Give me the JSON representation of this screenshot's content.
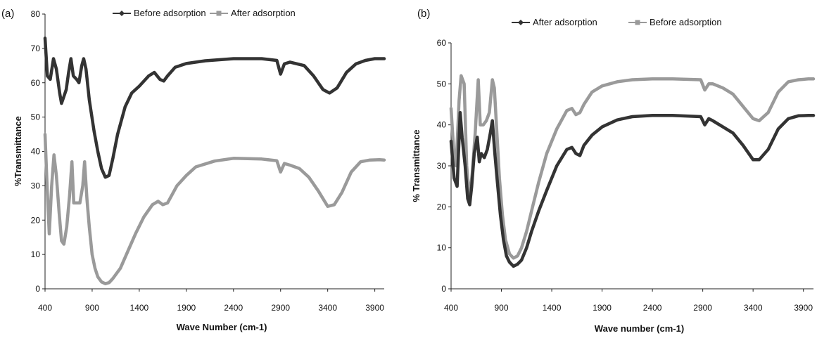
{
  "chart_data": [
    {
      "type": "line",
      "panel_label": "(a)",
      "xlabel": "Wave Number (cm-1)",
      "ylabel": "%Transmittance",
      "xlim": [
        400,
        4000
      ],
      "ylim": [
        0,
        80
      ],
      "x_ticks": [
        400,
        900,
        1400,
        1900,
        2400,
        2900,
        3400,
        3900
      ],
      "y_ticks": [
        0,
        10,
        20,
        30,
        40,
        50,
        60,
        70,
        80
      ],
      "legend_position": "top-center",
      "grid": false,
      "series": [
        {
          "name": "Before adsorption",
          "color": "#333333",
          "marker": "diamond",
          "points": [
            [
              400,
              73
            ],
            [
              425,
              62
            ],
            [
              455,
              61
            ],
            [
              490,
              67
            ],
            [
              520,
              64
            ],
            [
              555,
              57
            ],
            [
              575,
              54
            ],
            [
              600,
              56
            ],
            [
              625,
              58
            ],
            [
              650,
              63
            ],
            [
              675,
              67
            ],
            [
              700,
              62
            ],
            [
              735,
              61
            ],
            [
              760,
              60
            ],
            [
              790,
              65
            ],
            [
              810,
              67
            ],
            [
              835,
              64
            ],
            [
              870,
              55
            ],
            [
              920,
              46
            ],
            [
              960,
              40
            ],
            [
              1000,
              35
            ],
            [
              1040,
              32.5
            ],
            [
              1080,
              33
            ],
            [
              1120,
              38
            ],
            [
              1170,
              45
            ],
            [
              1250,
              53
            ],
            [
              1320,
              57
            ],
            [
              1400,
              59
            ],
            [
              1500,
              62
            ],
            [
              1560,
              63
            ],
            [
              1620,
              61
            ],
            [
              1660,
              60.5
            ],
            [
              1700,
              62
            ],
            [
              1780,
              64.5
            ],
            [
              1900,
              65.6
            ],
            [
              2100,
              66.4
            ],
            [
              2400,
              67
            ],
            [
              2700,
              67
            ],
            [
              2860,
              66.5
            ],
            [
              2900,
              62.5
            ],
            [
              2940,
              65.5
            ],
            [
              3000,
              66
            ],
            [
              3150,
              65
            ],
            [
              3250,
              62
            ],
            [
              3350,
              58
            ],
            [
              3420,
              57
            ],
            [
              3500,
              58.5
            ],
            [
              3600,
              63
            ],
            [
              3700,
              65.5
            ],
            [
              3800,
              66.5
            ],
            [
              3900,
              67
            ],
            [
              4000,
              67
            ]
          ]
        },
        {
          "name": "After adsorption",
          "color": "#9a9a9a",
          "marker": "square",
          "points": [
            [
              400,
              45
            ],
            [
              425,
              28
            ],
            [
              445,
              16
            ],
            [
              470,
              30
            ],
            [
              495,
              39
            ],
            [
              520,
              33
            ],
            [
              550,
              22
            ],
            [
              575,
              14
            ],
            [
              600,
              13
            ],
            [
              630,
              18
            ],
            [
              660,
              27
            ],
            [
              685,
              37
            ],
            [
              705,
              25
            ],
            [
              740,
              25
            ],
            [
              770,
              25
            ],
            [
              800,
              30
            ],
            [
              820,
              37
            ],
            [
              845,
              26
            ],
            [
              870,
              18
            ],
            [
              900,
              10
            ],
            [
              930,
              6
            ],
            [
              960,
              3.5
            ],
            [
              1000,
              2
            ],
            [
              1040,
              1.5
            ],
            [
              1080,
              1.8
            ],
            [
              1120,
              3
            ],
            [
              1200,
              6
            ],
            [
              1280,
              11
            ],
            [
              1360,
              16
            ],
            [
              1450,
              21
            ],
            [
              1540,
              24.5
            ],
            [
              1600,
              25.5
            ],
            [
              1650,
              24.5
            ],
            [
              1700,
              25
            ],
            [
              1800,
              30
            ],
            [
              1900,
              33
            ],
            [
              2000,
              35.5
            ],
            [
              2200,
              37.2
            ],
            [
              2400,
              38
            ],
            [
              2700,
              37.8
            ],
            [
              2860,
              37.3
            ],
            [
              2900,
              34
            ],
            [
              2940,
              36.5
            ],
            [
              3000,
              36
            ],
            [
              3100,
              35
            ],
            [
              3200,
              32.5
            ],
            [
              3300,
              28.5
            ],
            [
              3400,
              24
            ],
            [
              3470,
              24.5
            ],
            [
              3550,
              28
            ],
            [
              3650,
              34
            ],
            [
              3750,
              37
            ],
            [
              3850,
              37.5
            ],
            [
              3950,
              37.6
            ],
            [
              4000,
              37.5
            ]
          ]
        }
      ]
    },
    {
      "type": "line",
      "panel_label": "(b)",
      "xlabel": "Wave number (cm-1)",
      "ylabel": "% Transmittance",
      "xlim": [
        400,
        4000
      ],
      "ylim": [
        0,
        60
      ],
      "x_ticks": [
        400,
        900,
        1400,
        1900,
        2400,
        2900,
        3400,
        3900
      ],
      "y_ticks": [
        0,
        10,
        20,
        30,
        40,
        50,
        60
      ],
      "legend_position": "top-center",
      "grid": false,
      "series": [
        {
          "name": "After adsorption",
          "color": "#333333",
          "marker": "diamond",
          "points": [
            [
              400,
              36
            ],
            [
              430,
              27
            ],
            [
              460,
              25
            ],
            [
              490,
              43
            ],
            [
              510,
              37
            ],
            [
              540,
              30
            ],
            [
              565,
              22
            ],
            [
              585,
              20.5
            ],
            [
              605,
              25
            ],
            [
              630,
              33
            ],
            [
              660,
              37
            ],
            [
              680,
              31
            ],
            [
              700,
              33
            ],
            [
              730,
              32
            ],
            [
              760,
              34
            ],
            [
              790,
              38
            ],
            [
              810,
              41
            ],
            [
              835,
              33
            ],
            [
              860,
              26
            ],
            [
              890,
              18
            ],
            [
              920,
              12
            ],
            [
              950,
              8
            ],
            [
              980,
              6.5
            ],
            [
              1020,
              5.5
            ],
            [
              1060,
              6
            ],
            [
              1100,
              7
            ],
            [
              1150,
              10
            ],
            [
              1200,
              14
            ],
            [
              1270,
              19
            ],
            [
              1350,
              24
            ],
            [
              1450,
              30
            ],
            [
              1550,
              34
            ],
            [
              1600,
              34.5
            ],
            [
              1640,
              33
            ],
            [
              1680,
              32.5
            ],
            [
              1720,
              35
            ],
            [
              1800,
              37.5
            ],
            [
              1900,
              39.5
            ],
            [
              2050,
              41.2
            ],
            [
              2200,
              42
            ],
            [
              2400,
              42.3
            ],
            [
              2600,
              42.3
            ],
            [
              2880,
              42
            ],
            [
              2920,
              40
            ],
            [
              2960,
              41.5
            ],
            [
              3000,
              41
            ],
            [
              3100,
              39.5
            ],
            [
              3200,
              38
            ],
            [
              3300,
              35
            ],
            [
              3400,
              31.5
            ],
            [
              3460,
              31.5
            ],
            [
              3550,
              34
            ],
            [
              3650,
              39
            ],
            [
              3750,
              41.5
            ],
            [
              3850,
              42.2
            ],
            [
              3950,
              42.3
            ],
            [
              4000,
              42.3
            ]
          ]
        },
        {
          "name": "Before adsorption",
          "color": "#9a9a9a",
          "marker": "square",
          "points": [
            [
              400,
              44
            ],
            [
              430,
              32
            ],
            [
              450,
              30
            ],
            [
              480,
              46
            ],
            [
              500,
              52
            ],
            [
              530,
              50
            ],
            [
              555,
              30
            ],
            [
              580,
              22
            ],
            [
              610,
              28
            ],
            [
              640,
              38
            ],
            [
              670,
              51
            ],
            [
              690,
              40
            ],
            [
              720,
              40
            ],
            [
              750,
              41
            ],
            [
              780,
              43
            ],
            [
              810,
              51
            ],
            [
              830,
              49
            ],
            [
              855,
              38
            ],
            [
              880,
              27
            ],
            [
              910,
              18
            ],
            [
              940,
              12
            ],
            [
              980,
              8.5
            ],
            [
              1020,
              7.5
            ],
            [
              1060,
              8
            ],
            [
              1100,
              10
            ],
            [
              1150,
              14
            ],
            [
              1200,
              19
            ],
            [
              1270,
              26
            ],
            [
              1350,
              33
            ],
            [
              1450,
              39
            ],
            [
              1550,
              43.5
            ],
            [
              1600,
              44
            ],
            [
              1640,
              42.5
            ],
            [
              1680,
              43
            ],
            [
              1720,
              45
            ],
            [
              1800,
              48
            ],
            [
              1900,
              49.5
            ],
            [
              2050,
              50.5
            ],
            [
              2200,
              51
            ],
            [
              2400,
              51.2
            ],
            [
              2600,
              51.2
            ],
            [
              2880,
              51
            ],
            [
              2920,
              48.5
            ],
            [
              2960,
              50
            ],
            [
              3000,
              50
            ],
            [
              3100,
              49
            ],
            [
              3200,
              47.5
            ],
            [
              3300,
              44.5
            ],
            [
              3400,
              41.5
            ],
            [
              3460,
              41
            ],
            [
              3550,
              43
            ],
            [
              3650,
              48
            ],
            [
              3750,
              50.5
            ],
            [
              3850,
              51
            ],
            [
              3950,
              51.2
            ],
            [
              4000,
              51.2
            ]
          ]
        }
      ]
    }
  ]
}
